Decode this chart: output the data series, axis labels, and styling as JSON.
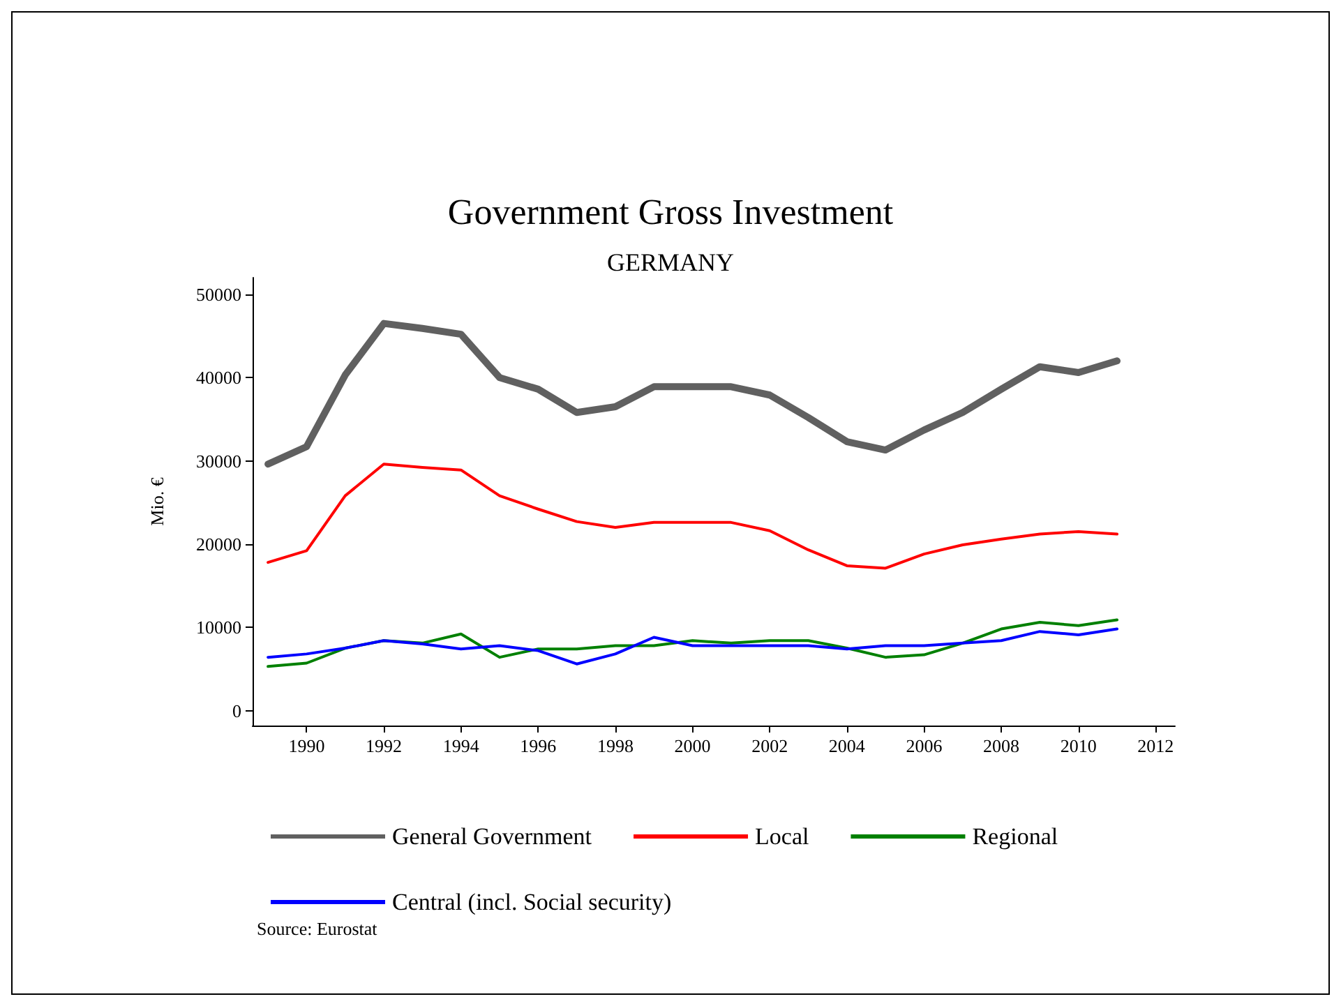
{
  "chart_data": {
    "type": "line",
    "title": "Government Gross Investment",
    "subtitle": "GERMANY",
    "ylabel": "Mio. €",
    "x": [
      1989,
      1990,
      1991,
      1992,
      1993,
      1994,
      1995,
      1996,
      1997,
      1998,
      1999,
      2000,
      2001,
      2002,
      2003,
      2004,
      2005,
      2006,
      2007,
      2008,
      2009,
      2010,
      2011
    ],
    "series": [
      {
        "name": "General Government",
        "color": "#606060",
        "values": [
          29600,
          31700,
          40300,
          46500,
          45900,
          45200,
          40000,
          38600,
          35800,
          36500,
          38900,
          38900,
          38900,
          37900,
          35200,
          32300,
          31300,
          33700,
          35800,
          38600,
          41300,
          40600,
          42000
        ]
      },
      {
        "name": "Local",
        "color": "#ff0000",
        "values": [
          17800,
          19200,
          25800,
          29600,
          29200,
          28900,
          25800,
          24200,
          22700,
          22000,
          22600,
          22600,
          22600,
          21600,
          19300,
          17400,
          17100,
          18800,
          19900,
          20600,
          21200,
          21500,
          21200
        ]
      },
      {
        "name": "Regional",
        "color": "#008000",
        "values": [
          5300,
          5700,
          7500,
          8400,
          8100,
          9200,
          6400,
          7400,
          7400,
          7800,
          7800,
          8400,
          8100,
          8400,
          8400,
          7500,
          6400,
          6700,
          8100,
          9800,
          10600,
          10200,
          10900
        ]
      },
      {
        "name": "Central (incl. Social security)",
        "color": "#0000ff",
        "values": [
          6400,
          6800,
          7500,
          8400,
          8000,
          7400,
          7800,
          7200,
          5600,
          6800,
          8800,
          7800,
          7800,
          7800,
          7800,
          7400,
          7800,
          7800,
          8100,
          8400,
          9500,
          9100,
          9800
        ]
      }
    ],
    "xlim": [
      1988.6,
      2012.5
    ],
    "xticks": [
      1990,
      1992,
      1994,
      1996,
      1998,
      2000,
      2002,
      2004,
      2006,
      2008,
      2010,
      2012
    ],
    "ylim": [
      -1800,
      52000
    ],
    "yticks": [
      0,
      10000,
      20000,
      30000,
      40000,
      50000
    ],
    "grid": false,
    "legend": "bottom",
    "marker": "none",
    "line_style": "solid",
    "annotations": [
      "Source: Eurostat"
    ]
  }
}
